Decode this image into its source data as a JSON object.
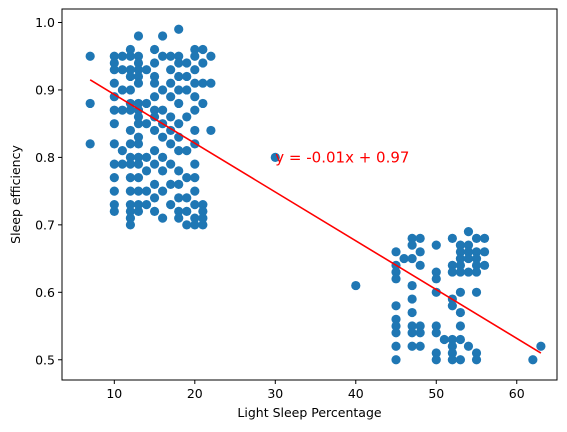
{
  "chart_data": {
    "type": "scatter",
    "xlabel": "Light Sleep Percentage",
    "ylabel": "Sleep efficiency",
    "xlim": [
      3.5,
      65
    ],
    "ylim": [
      0.47,
      1.02
    ],
    "x_ticks": [
      10,
      20,
      30,
      40,
      50,
      60
    ],
    "y_ticks": [
      0.5,
      0.6,
      0.7,
      0.8,
      0.9,
      1.0
    ],
    "x_tick_labels": [
      "10",
      "20",
      "30",
      "40",
      "50",
      "60"
    ],
    "y_tick_labels": [
      "0.5",
      "0.6",
      "0.7",
      "0.8",
      "0.9",
      "1.0"
    ],
    "grid": false,
    "point_color": "#1f77b4",
    "fit_color": "#ff0000",
    "annotation": {
      "text": "y = -0.01x + 0.97",
      "x": 30,
      "y": 0.8
    },
    "fit_line": {
      "x": [
        7,
        63
      ],
      "y": [
        0.915,
        0.51
      ]
    },
    "points": [
      [
        7,
        0.95
      ],
      [
        7,
        0.88
      ],
      [
        7,
        0.82
      ],
      [
        10,
        0.95
      ],
      [
        10,
        0.94
      ],
      [
        10,
        0.93
      ],
      [
        10,
        0.91
      ],
      [
        10,
        0.89
      ],
      [
        10,
        0.87
      ],
      [
        10,
        0.85
      ],
      [
        10,
        0.82
      ],
      [
        10,
        0.79
      ],
      [
        10,
        0.77
      ],
      [
        10,
        0.75
      ],
      [
        10,
        0.73
      ],
      [
        10,
        0.72
      ],
      [
        11,
        0.95
      ],
      [
        11,
        0.93
      ],
      [
        11,
        0.9
      ],
      [
        11,
        0.87
      ],
      [
        11,
        0.81
      ],
      [
        11,
        0.79
      ],
      [
        12,
        0.96
      ],
      [
        12,
        0.95
      ],
      [
        12,
        0.93
      ],
      [
        12,
        0.92
      ],
      [
        12,
        0.9
      ],
      [
        12,
        0.88
      ],
      [
        12,
        0.87
      ],
      [
        12,
        0.84
      ],
      [
        12,
        0.82
      ],
      [
        12,
        0.8
      ],
      [
        12,
        0.79
      ],
      [
        12,
        0.77
      ],
      [
        12,
        0.75
      ],
      [
        12,
        0.73
      ],
      [
        12,
        0.72
      ],
      [
        12,
        0.71
      ],
      [
        12,
        0.7
      ],
      [
        13,
        0.98
      ],
      [
        13,
        0.95
      ],
      [
        13,
        0.94
      ],
      [
        13,
        0.93
      ],
      [
        13,
        0.92
      ],
      [
        13,
        0.91
      ],
      [
        13,
        0.88
      ],
      [
        13,
        0.87
      ],
      [
        13,
        0.86
      ],
      [
        13,
        0.85
      ],
      [
        13,
        0.83
      ],
      [
        13,
        0.82
      ],
      [
        13,
        0.8
      ],
      [
        13,
        0.79
      ],
      [
        13,
        0.77
      ],
      [
        13,
        0.75
      ],
      [
        13,
        0.73
      ],
      [
        13,
        0.72
      ],
      [
        14,
        0.93
      ],
      [
        14,
        0.88
      ],
      [
        14,
        0.85
      ],
      [
        14,
        0.8
      ],
      [
        14,
        0.78
      ],
      [
        14,
        0.75
      ],
      [
        14,
        0.73
      ],
      [
        15,
        0.96
      ],
      [
        15,
        0.94
      ],
      [
        15,
        0.92
      ],
      [
        15,
        0.91
      ],
      [
        15,
        0.89
      ],
      [
        15,
        0.87
      ],
      [
        15,
        0.86
      ],
      [
        15,
        0.84
      ],
      [
        15,
        0.81
      ],
      [
        15,
        0.79
      ],
      [
        15,
        0.76
      ],
      [
        15,
        0.74
      ],
      [
        15,
        0.72
      ],
      [
        16,
        0.98
      ],
      [
        16,
        0.95
      ],
      [
        16,
        0.9
      ],
      [
        16,
        0.87
      ],
      [
        16,
        0.85
      ],
      [
        16,
        0.83
      ],
      [
        16,
        0.8
      ],
      [
        16,
        0.78
      ],
      [
        16,
        0.75
      ],
      [
        16,
        0.71
      ],
      [
        17,
        0.95
      ],
      [
        17,
        0.93
      ],
      [
        17,
        0.91
      ],
      [
        17,
        0.89
      ],
      [
        17,
        0.86
      ],
      [
        17,
        0.84
      ],
      [
        17,
        0.82
      ],
      [
        17,
        0.79
      ],
      [
        17,
        0.76
      ],
      [
        17,
        0.73
      ],
      [
        18,
        0.99
      ],
      [
        18,
        0.95
      ],
      [
        18,
        0.94
      ],
      [
        18,
        0.92
      ],
      [
        18,
        0.9
      ],
      [
        18,
        0.88
      ],
      [
        18,
        0.85
      ],
      [
        18,
        0.83
      ],
      [
        18,
        0.81
      ],
      [
        18,
        0.78
      ],
      [
        18,
        0.76
      ],
      [
        18,
        0.74
      ],
      [
        18,
        0.72
      ],
      [
        18,
        0.71
      ],
      [
        19,
        0.94
      ],
      [
        19,
        0.92
      ],
      [
        19,
        0.9
      ],
      [
        19,
        0.86
      ],
      [
        19,
        0.81
      ],
      [
        19,
        0.77
      ],
      [
        19,
        0.74
      ],
      [
        19,
        0.72
      ],
      [
        19,
        0.7
      ],
      [
        20,
        0.96
      ],
      [
        20,
        0.95
      ],
      [
        20,
        0.93
      ],
      [
        20,
        0.91
      ],
      [
        20,
        0.89
      ],
      [
        20,
        0.87
      ],
      [
        20,
        0.84
      ],
      [
        20,
        0.82
      ],
      [
        20,
        0.79
      ],
      [
        20,
        0.77
      ],
      [
        20,
        0.75
      ],
      [
        20,
        0.73
      ],
      [
        20,
        0.71
      ],
      [
        20,
        0.7
      ],
      [
        21,
        0.96
      ],
      [
        21,
        0.94
      ],
      [
        21,
        0.91
      ],
      [
        21,
        0.88
      ],
      [
        21,
        0.73
      ],
      [
        21,
        0.72
      ],
      [
        21,
        0.71
      ],
      [
        21,
        0.7
      ],
      [
        22,
        0.95
      ],
      [
        22,
        0.91
      ],
      [
        22,
        0.84
      ],
      [
        30,
        0.8
      ],
      [
        40,
        0.61
      ],
      [
        45,
        0.66
      ],
      [
        45,
        0.64
      ],
      [
        45,
        0.63
      ],
      [
        45,
        0.62
      ],
      [
        45,
        0.58
      ],
      [
        45,
        0.56
      ],
      [
        45,
        0.55
      ],
      [
        45,
        0.54
      ],
      [
        45,
        0.52
      ],
      [
        45,
        0.5
      ],
      [
        46,
        0.65
      ],
      [
        47,
        0.68
      ],
      [
        47,
        0.67
      ],
      [
        47,
        0.65
      ],
      [
        47,
        0.61
      ],
      [
        47,
        0.59
      ],
      [
        47,
        0.57
      ],
      [
        47,
        0.55
      ],
      [
        47,
        0.54
      ],
      [
        47,
        0.52
      ],
      [
        48,
        0.68
      ],
      [
        48,
        0.66
      ],
      [
        48,
        0.64
      ],
      [
        48,
        0.55
      ],
      [
        48,
        0.54
      ],
      [
        48,
        0.52
      ],
      [
        50,
        0.67
      ],
      [
        50,
        0.63
      ],
      [
        50,
        0.62
      ],
      [
        50,
        0.6
      ],
      [
        50,
        0.55
      ],
      [
        50,
        0.54
      ],
      [
        50,
        0.51
      ],
      [
        50,
        0.5
      ],
      [
        51,
        0.53
      ],
      [
        52,
        0.68
      ],
      [
        52,
        0.64
      ],
      [
        52,
        0.63
      ],
      [
        52,
        0.59
      ],
      [
        52,
        0.58
      ],
      [
        52,
        0.53
      ],
      [
        52,
        0.52
      ],
      [
        52,
        0.51
      ],
      [
        52,
        0.5
      ],
      [
        53,
        0.67
      ],
      [
        53,
        0.66
      ],
      [
        53,
        0.65
      ],
      [
        53,
        0.64
      ],
      [
        53,
        0.63
      ],
      [
        53,
        0.6
      ],
      [
        53,
        0.57
      ],
      [
        53,
        0.55
      ],
      [
        53,
        0.53
      ],
      [
        53,
        0.5
      ],
      [
        54,
        0.69
      ],
      [
        54,
        0.67
      ],
      [
        54,
        0.66
      ],
      [
        54,
        0.65
      ],
      [
        54,
        0.63
      ],
      [
        54,
        0.52
      ],
      [
        55,
        0.68
      ],
      [
        55,
        0.66
      ],
      [
        55,
        0.65
      ],
      [
        55,
        0.64
      ],
      [
        55,
        0.63
      ],
      [
        55,
        0.6
      ],
      [
        55,
        0.51
      ],
      [
        55,
        0.5
      ],
      [
        56,
        0.68
      ],
      [
        56,
        0.66
      ],
      [
        56,
        0.64
      ],
      [
        62,
        0.5
      ],
      [
        63,
        0.52
      ]
    ]
  }
}
